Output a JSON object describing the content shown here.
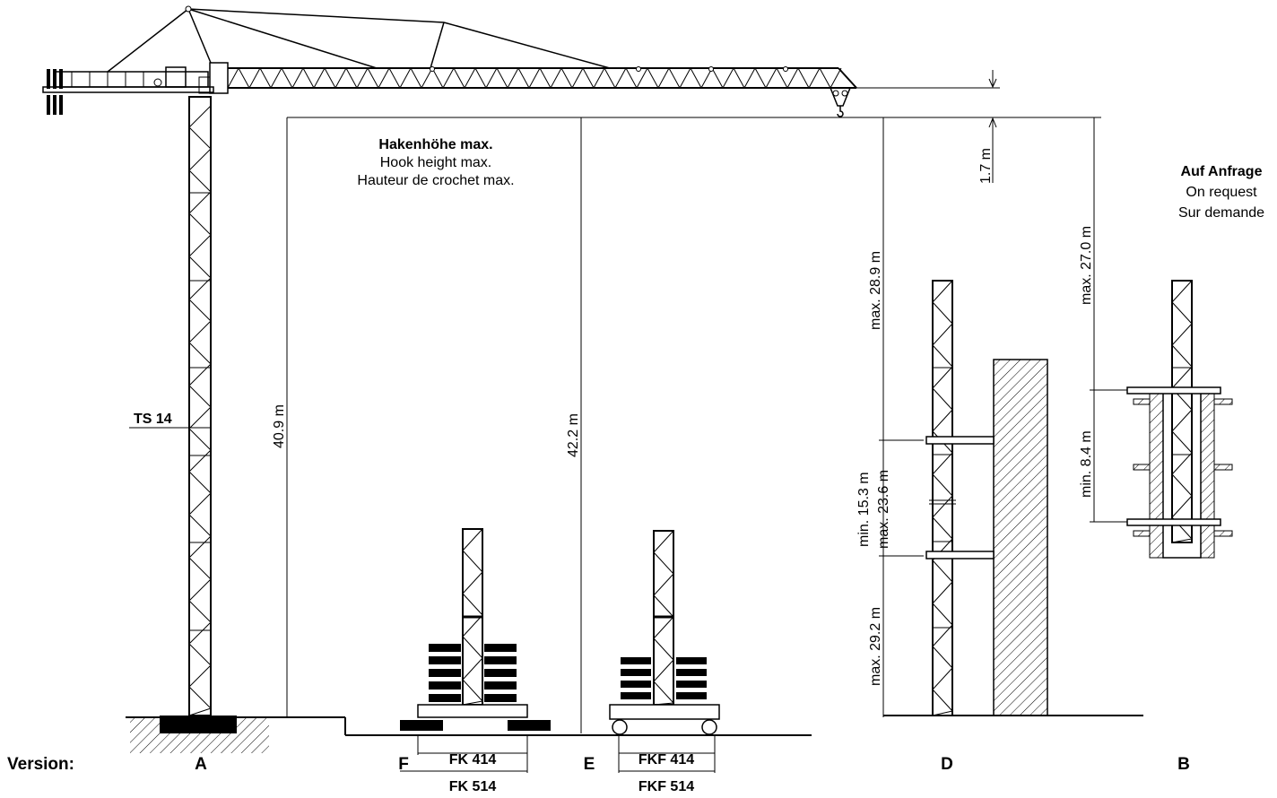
{
  "hook_height": {
    "title_de": "Hakenhöhe max.",
    "title_en": "Hook height max.",
    "title_fr": "Hauteur de crochet max."
  },
  "on_request": {
    "de": "Auf Anfrage",
    "en": "On request",
    "fr": "Sur demande"
  },
  "version_label": "Version:",
  "versions": {
    "a": "A",
    "f": "F",
    "e": "E",
    "d": "D",
    "b": "B"
  },
  "mast_label": "TS 14",
  "dimensions": {
    "jib_clearance": "1.7 m",
    "version_a_height": "40.9 m",
    "version_e_height": "42.2 m",
    "version_d_top": "max. 28.9 m",
    "version_d_mid_min": "min. 15.3 m",
    "version_d_mid_max": "max. 23.6 m",
    "version_d_bottom": "max. 29.2 m",
    "version_b_top": "max. 27.0 m",
    "version_b_bottom": "min. 8.4 m"
  },
  "bases": {
    "f_top": "FK 414",
    "f_bottom": "FK 514",
    "e_top": "FKF 414",
    "e_bottom": "FKF 514"
  }
}
